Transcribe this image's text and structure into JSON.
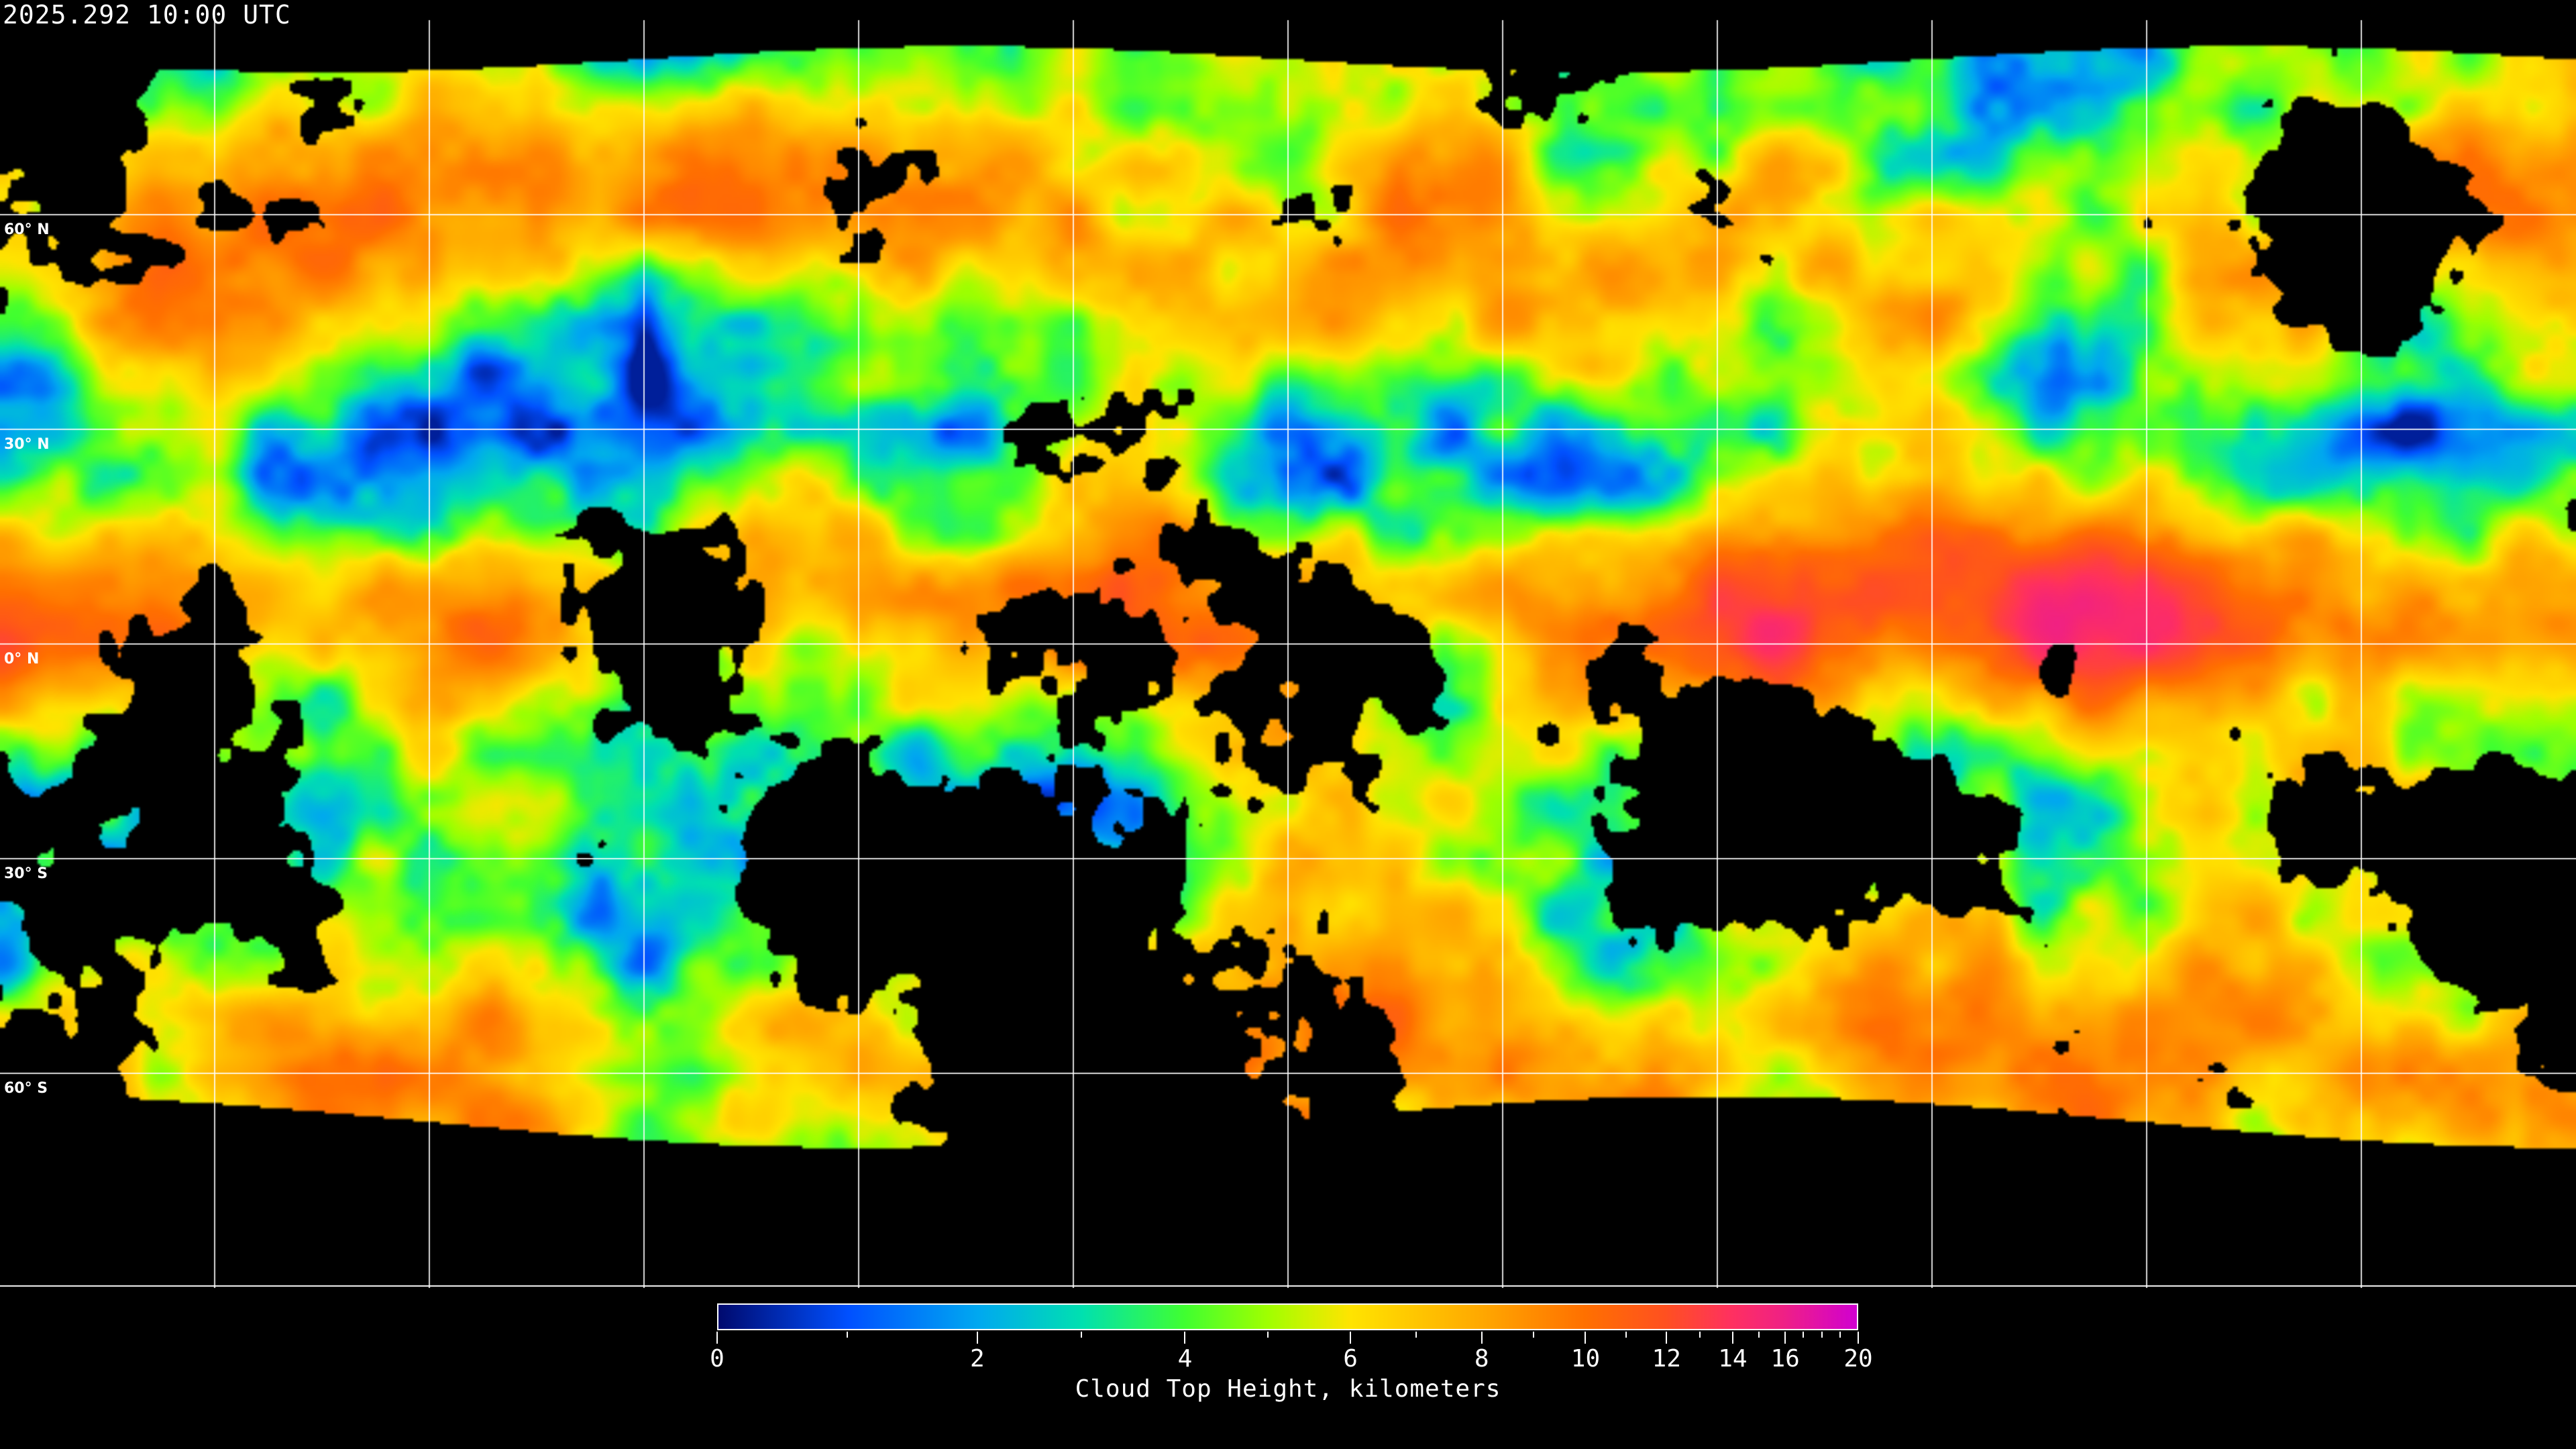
{
  "title": "2025.292 10:00 UTC",
  "latitude_labels": [
    "60° N",
    "30° N",
    "0° N",
    "30° S",
    "60° S"
  ],
  "colorbar": {
    "label": "Cloud Top Height, kilometers",
    "min": 0,
    "max": 20,
    "major_ticks": [
      "0",
      "2",
      "4",
      "6",
      "8",
      "10",
      "12",
      "14",
      "16",
      "20"
    ],
    "minor_ticks": [
      1,
      3,
      5,
      7,
      9,
      11,
      13,
      15,
      17,
      18,
      19
    ],
    "colormap": [
      [
        0,
        "#000a6e"
      ],
      [
        1,
        "#0050ff"
      ],
      [
        2,
        "#00a8f0"
      ],
      [
        3,
        "#00e0b0"
      ],
      [
        4,
        "#40ff30"
      ],
      [
        5,
        "#a0ff00"
      ],
      [
        6,
        "#ffe400"
      ],
      [
        8,
        "#ffa800"
      ],
      [
        10,
        "#ff7000"
      ],
      [
        12,
        "#ff5020"
      ],
      [
        14,
        "#ff3060"
      ],
      [
        20,
        "#d000d0"
      ]
    ]
  },
  "map": {
    "projection": "equirectangular",
    "graticule_spacing_deg": 30,
    "no_data_color": "#000000",
    "grid_color": "#ffffff"
  }
}
